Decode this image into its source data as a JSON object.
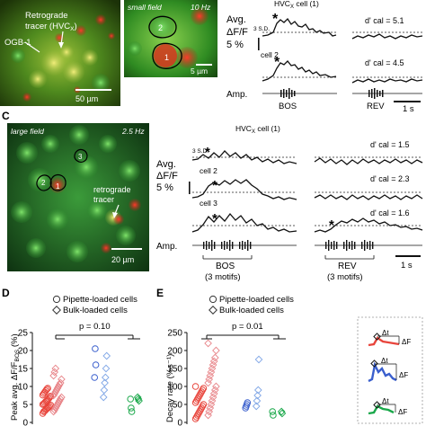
{
  "panelA": {
    "label_retro": "Retrograde",
    "label_tracer": "tracer (HVC",
    "label_tracer_sub": "X",
    "label_tracer_end": ")",
    "label_ogb": "OGB-1",
    "scale": "50 µm"
  },
  "panelB": {
    "small_field": "small field",
    "rate": "10 Hz",
    "cell_a": "2",
    "cell_b": "1",
    "scale": "5 µm",
    "title": "HVC",
    "title_sub": "X",
    "title_end": " cell (1)",
    "ylabel1": "Avg.",
    "ylabel2": "ΔF/F",
    "ybar": "5 %",
    "sd": "3 S.D.",
    "cell2": "cell 2",
    "dcal1": "d' cal = 5.1",
    "dcal2": "d' cal = 4.5",
    "amp": "Amp.",
    "bos": "BOS",
    "rev": "REV",
    "tbar": "1 s"
  },
  "panelC": {
    "letter": "C",
    "large_field": "large field",
    "rate": "2.5 Hz",
    "cell_1": "1",
    "cell_2": "2",
    "cell_3": "3",
    "retro": "retrograde",
    "tracer": "tracer",
    "scale": "20 µm",
    "title": "HVC",
    "title_sub": "X",
    "title_end": " cell (1)",
    "sd": "3 S.D.",
    "ylabel1": "Avg.",
    "ylabel2": "ΔF/F",
    "ybar": "5 %",
    "cell2": "cell 2",
    "cell3": "cell 3",
    "dcal1": "d' cal = 1.5",
    "dcal2": "d' cal = 2.3",
    "dcal3": "d' cal = 1.6",
    "amp": "Amp.",
    "bos": "BOS",
    "bos_sub": "(3 motifs)",
    "rev": "REV",
    "rev_sub": "(3 motifs)",
    "tbar": "1 s"
  },
  "panelD": {
    "letter": "D",
    "legend_pipette": "Pipette-loaded cells",
    "legend_bulk": "Bulk-loaded cells",
    "pvalue": "p = 0.10",
    "ylabel_prefix": "Peak avg. ΔF/F",
    "ylabel_sub": "BOS",
    "ylabel_suffix": " (%)",
    "yticks": [
      "0",
      "5",
      "10",
      "15",
      "20",
      "25"
    ]
  },
  "panelE": {
    "letter": "E",
    "legend_pipette": "Pipette-loaded cells",
    "legend_bulk": "Bulk-loaded cells",
    "pvalue": "p = 0.01",
    "ylabel": "Decay rate (%s⁻¹)",
    "yticks": [
      "0",
      "50",
      "100",
      "150",
      "200",
      "250"
    ],
    "inset_dt": "Δt",
    "inset_df": "ΔF"
  },
  "colors": {
    "red": "#e8453c",
    "blue": "#3a5fcd",
    "green": "#1aa84a",
    "pink": "#e8868a",
    "lightblue": "#7fa6e6"
  },
  "chart_data": [
    {
      "type": "scatter",
      "panel": "D",
      "categories": [
        "small-field cells",
        "large-field cells (blue)",
        "large-field cells (green)"
      ],
      "ylim": [
        0,
        25
      ],
      "series": [
        {
          "name": "Pipette-loaded cells",
          "marker": "circle",
          "groups": [
            [
              2.5,
              3,
              3.2,
              3.5,
              3.8,
              4,
              4.2,
              4.5,
              4.8,
              5,
              5.2,
              5.5,
              5.8,
              6,
              6.3,
              6.6,
              7,
              7.3,
              7.6,
              8,
              8.4,
              8.8,
              9.2,
              9.5
            ],
            [
              12.5,
              20.5,
              16
            ],
            [
              6.5,
              4,
              3
            ]
          ]
        },
        {
          "name": "Bulk-loaded cells",
          "marker": "diamond",
          "groups": [
            [
              3,
              3.5,
              4,
              4.5,
              5,
              5.5,
              6,
              6.5,
              7,
              7.5,
              8,
              8.5,
              9,
              9.5,
              10,
              10.5,
              11,
              12,
              13,
              14,
              15
            ],
            [
              7,
              9,
              11,
              12.5,
              15,
              18.5
            ],
            [
              7,
              6.5,
              6
            ]
          ]
        }
      ],
      "annotation": "p = 0.10"
    },
    {
      "type": "scatter",
      "panel": "E",
      "categories": [
        "small-field cells",
        "large-field cells (blue)",
        "large-field cells (green)"
      ],
      "ylim": [
        0,
        250
      ],
      "series": [
        {
          "name": "Pipette-loaded cells",
          "marker": "circle",
          "groups": [
            [
              10,
              15,
              20,
              25,
              30,
              35,
              40,
              45,
              50,
              55,
              60,
              65,
              70,
              75,
              80,
              85,
              90,
              95,
              100
            ],
            [
              40,
              45,
              50,
              55
            ],
            [
              30,
              20
            ]
          ]
        },
        {
          "name": "Bulk-loaded cells",
          "marker": "diamond",
          "groups": [
            [
              20,
              30,
              40,
              50,
              60,
              70,
              80,
              90,
              100,
              110,
              120,
              130,
              140,
              150,
              160,
              170,
              180,
              200,
              220
            ],
            [
              45,
              60,
              75,
              90,
              175
            ],
            [
              30,
              25
            ]
          ]
        }
      ],
      "annotation": "p = 0.01"
    }
  ]
}
